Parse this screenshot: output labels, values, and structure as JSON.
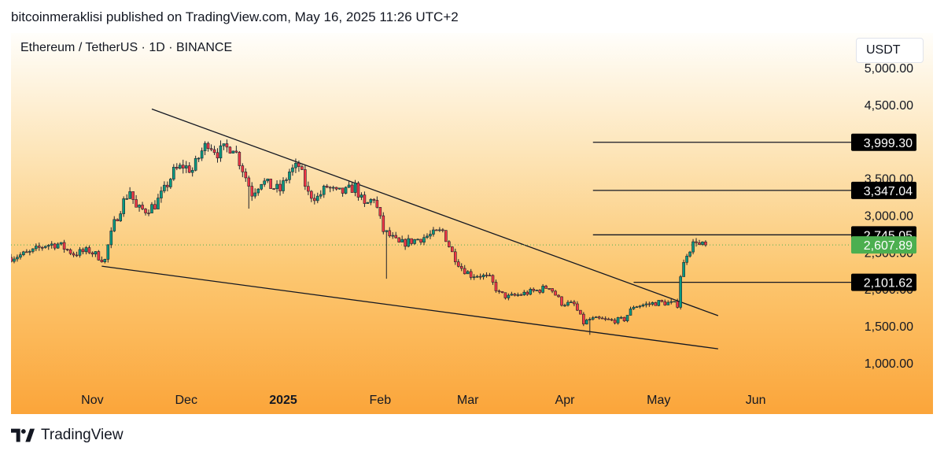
{
  "publisher_line": "bitcoinmeraklisi published on TradingView.com, May 16, 2025 11:26 UTC+2",
  "symbol_title": "Ethereum / TetherUS · 1D · BINANCE",
  "currency": "USDT",
  "footer_brand": "TradingView",
  "colors": {
    "candle_up": "#089981",
    "candle_down": "#f23645",
    "price_line": "#4caf50",
    "current_badge": "#4caf50",
    "level_badge": "#000000"
  },
  "icons": {
    "footer_logo": "tradingview-logo-icon"
  },
  "chart_data": {
    "type": "candlestick",
    "title": "Ethereum / TetherUS · 1D · BINANCE",
    "x_ticks": [
      {
        "label": "Nov",
        "date": "2024-11-01",
        "bold": false
      },
      {
        "label": "Dec",
        "date": "2024-12-01",
        "bold": false
      },
      {
        "label": "2025",
        "date": "2025-01-01",
        "bold": true
      },
      {
        "label": "Feb",
        "date": "2025-02-01",
        "bold": false
      },
      {
        "label": "Mar",
        "date": "2025-03-01",
        "bold": false
      },
      {
        "label": "Apr",
        "date": "2025-04-01",
        "bold": false
      },
      {
        "label": "May",
        "date": "2025-05-01",
        "bold": false
      },
      {
        "label": "Jun",
        "date": "2025-06-01",
        "bold": false
      }
    ],
    "x_range": [
      "2024-10-06",
      "2025-06-27"
    ],
    "y_range": [
      700,
      5480
    ],
    "y_ticks": [
      "1,000.00",
      "1,500.00",
      "2,000.00",
      "2,500.00",
      "3,000.00",
      "3,500.00",
      "4,500.00",
      "5,000.00"
    ],
    "y_tick_values": [
      1000,
      1500,
      2000,
      2500,
      3000,
      3500,
      4500,
      5000
    ],
    "close_series": [
      [
        "2024-10-06",
        2440
      ],
      [
        "2024-10-12",
        2500
      ],
      [
        "2024-10-17",
        2610
      ],
      [
        "2024-10-21",
        2620
      ],
      [
        "2024-10-26",
        2490
      ],
      [
        "2024-10-31",
        2530
      ],
      [
        "2024-11-03",
        2450
      ],
      [
        "2024-11-05",
        2400
      ],
      [
        "2024-11-06",
        2600
      ],
      [
        "2024-11-08",
        2900
      ],
      [
        "2024-11-11",
        3200
      ],
      [
        "2024-11-13",
        3350
      ],
      [
        "2024-11-15",
        3100
      ],
      [
        "2024-11-18",
        3080
      ],
      [
        "2024-11-21",
        3150
      ],
      [
        "2024-11-24",
        3350
      ],
      [
        "2024-11-27",
        3600
      ],
      [
        "2024-11-30",
        3680
      ],
      [
        "2024-12-03",
        3620
      ],
      [
        "2024-12-06",
        3880
      ],
      [
        "2024-12-08",
        4000
      ],
      [
        "2024-12-11",
        3860
      ],
      [
        "2024-12-13",
        3900
      ],
      [
        "2024-12-16",
        3950
      ],
      [
        "2024-12-19",
        3640
      ],
      [
        "2024-12-22",
        3310
      ],
      [
        "2024-12-25",
        3480
      ],
      [
        "2024-12-28",
        3400
      ],
      [
        "2024-12-31",
        3350
      ],
      [
        "2025-01-03",
        3600
      ],
      [
        "2025-01-06",
        3680
      ],
      [
        "2025-01-09",
        3300
      ],
      [
        "2025-01-12",
        3250
      ],
      [
        "2025-01-15",
        3400
      ],
      [
        "2025-01-18",
        3310
      ],
      [
        "2025-01-21",
        3330
      ],
      [
        "2025-01-24",
        3400
      ],
      [
        "2025-01-27",
        3130
      ],
      [
        "2025-01-30",
        3250
      ],
      [
        "2025-02-02",
        2800
      ],
      [
        "2025-02-04",
        2730
      ],
      [
        "2025-02-07",
        2620
      ],
      [
        "2025-02-10",
        2650
      ],
      [
        "2025-02-14",
        2700
      ],
      [
        "2025-02-17",
        2740
      ],
      [
        "2025-02-21",
        2800
      ],
      [
        "2025-02-24",
        2500
      ],
      [
        "2025-02-27",
        2300
      ],
      [
        "2025-03-02",
        2200
      ],
      [
        "2025-03-05",
        2200
      ],
      [
        "2025-03-08",
        2150
      ],
      [
        "2025-03-11",
        1950
      ],
      [
        "2025-03-14",
        1900
      ],
      [
        "2025-03-17",
        1930
      ],
      [
        "2025-03-20",
        1960
      ],
      [
        "2025-03-24",
        2000
      ],
      [
        "2025-03-27",
        2050
      ],
      [
        "2025-03-31",
        1820
      ],
      [
        "2025-04-04",
        1800
      ],
      [
        "2025-04-07",
        1550
      ],
      [
        "2025-04-09",
        1600
      ],
      [
        "2025-04-12",
        1600
      ],
      [
        "2025-04-16",
        1580
      ],
      [
        "2025-04-20",
        1600
      ],
      [
        "2025-04-23",
        1780
      ],
      [
        "2025-04-27",
        1800
      ],
      [
        "2025-05-01",
        1830
      ],
      [
        "2025-05-04",
        1820
      ],
      [
        "2025-05-07",
        1800
      ],
      [
        "2025-05-08",
        2200
      ],
      [
        "2025-05-09",
        2350
      ],
      [
        "2025-05-10",
        2500
      ],
      [
        "2025-05-13",
        2680
      ],
      [
        "2025-05-14",
        2600
      ],
      [
        "2025-05-16",
        2607.89
      ]
    ],
    "trendlines": [
      {
        "name": "upper-trendline",
        "from": [
          "2024-11-20",
          4450
        ],
        "to": [
          "2025-05-20",
          1650
        ]
      },
      {
        "name": "lower-trendline",
        "from": [
          "2024-11-04",
          2320
        ],
        "to": [
          "2025-05-20",
          1200
        ]
      }
    ],
    "levels": [
      {
        "label": "3,999.30",
        "value": 3999.3,
        "from": "2025-04-10"
      },
      {
        "label": "3,347.04",
        "value": 3347.04,
        "from": "2025-04-10"
      },
      {
        "label": "2,745.05",
        "value": 2745.05,
        "from": "2025-04-10"
      },
      {
        "label": "2,101.62",
        "value": 2101.62,
        "from": "2025-04-23"
      }
    ],
    "current_price": {
      "label": "2,607.89",
      "value": 2607.89
    },
    "grid": false,
    "legend": "none"
  }
}
